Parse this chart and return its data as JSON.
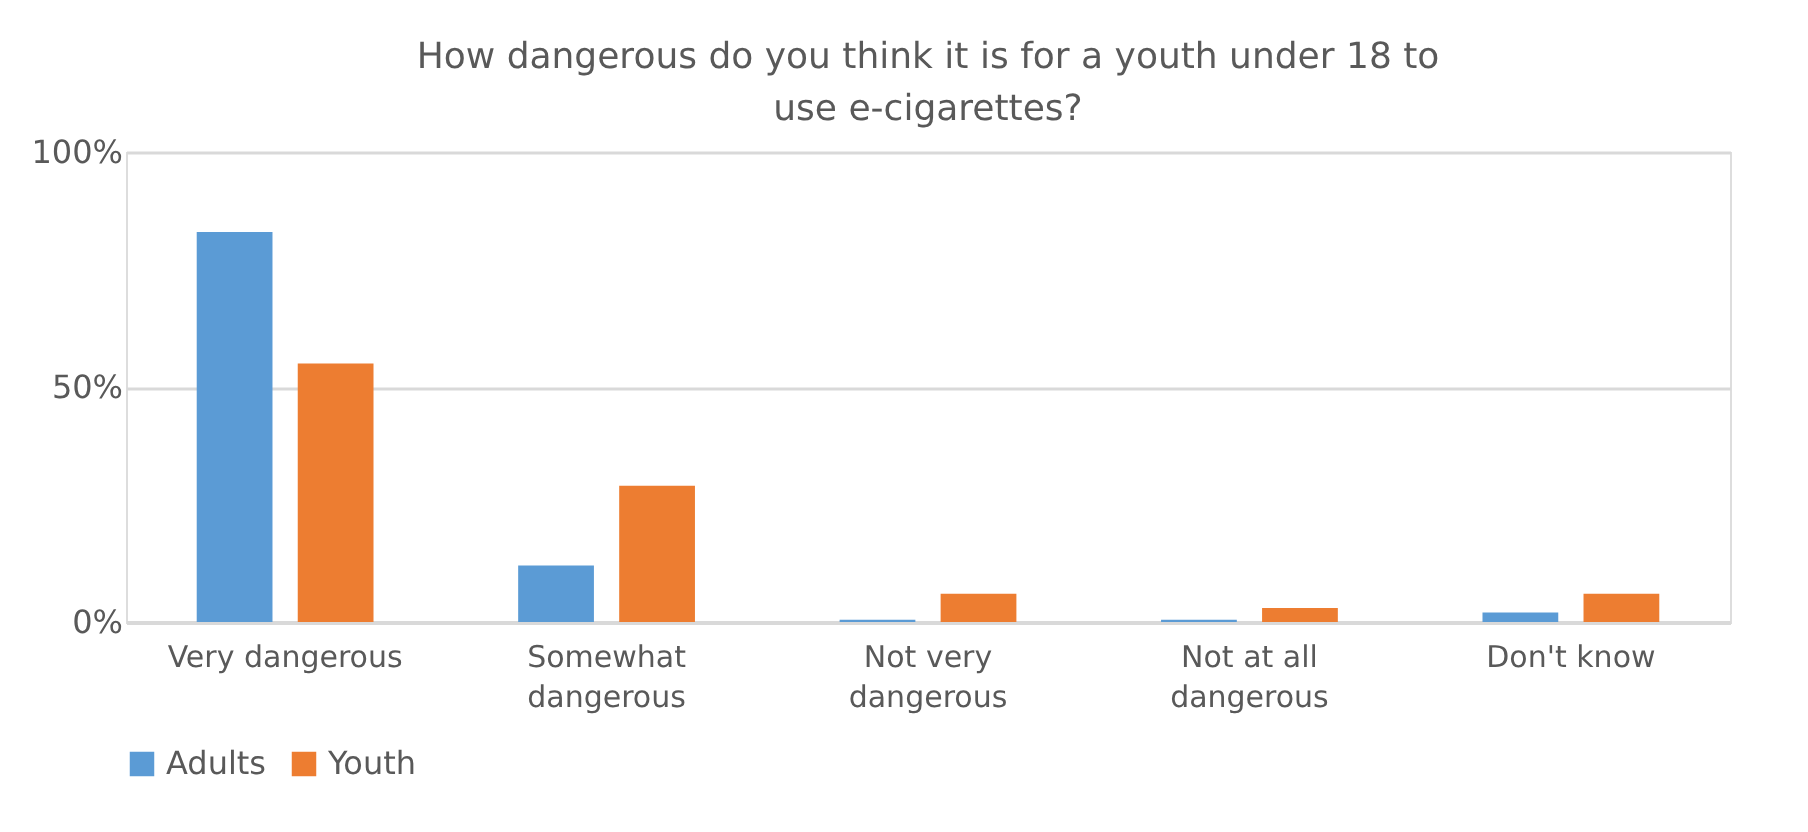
{
  "chart_data": {
    "type": "bar",
    "title": "How dangerous do you think it is for a youth under 18 to use e-cigarettes?",
    "categories": [
      "Very dangerous",
      "Somewhat dangerous",
      "Not very dangerous",
      "Not at all dangerous",
      "Don't know"
    ],
    "series": [
      {
        "name": "Adults",
        "color": "#5b9bd5",
        "values": [
          83,
          12,
          0.5,
          0.5,
          2
        ]
      },
      {
        "name": "Youth",
        "color": "#ed7d31",
        "values": [
          55,
          29,
          6,
          3,
          6
        ]
      }
    ],
    "ylim": [
      0,
      100
    ],
    "yticks": [
      {
        "value": 0,
        "label": "0%"
      },
      {
        "value": 50,
        "label": "50%"
      },
      {
        "value": 100,
        "label": "100%"
      }
    ],
    "grid": "y",
    "legend": "bottom"
  }
}
